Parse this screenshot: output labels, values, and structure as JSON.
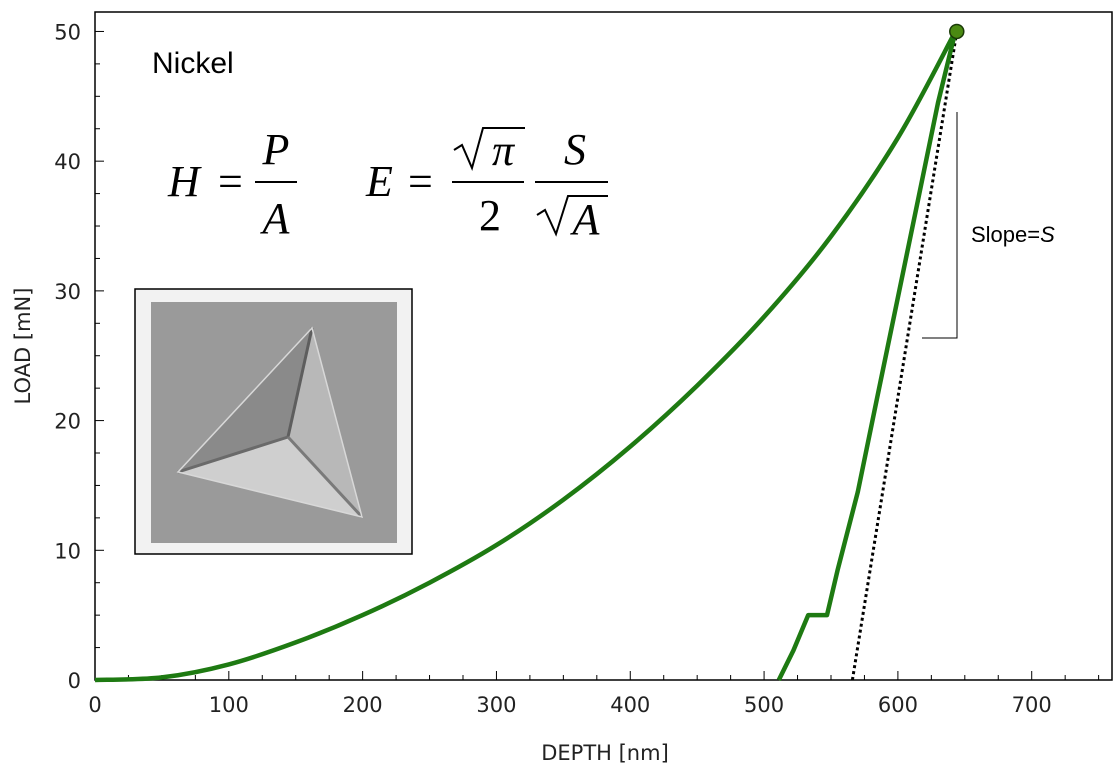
{
  "chart_data": {
    "type": "line",
    "title": "",
    "xlabel": "DEPTH [nm]",
    "ylabel": "LOAD [mN]",
    "xlim": [
      0,
      760
    ],
    "ylim": [
      0,
      51.5
    ],
    "x_ticks": [
      0,
      100,
      200,
      300,
      400,
      500,
      600,
      700
    ],
    "y_ticks": [
      0,
      10,
      20,
      30,
      40,
      50
    ],
    "grid": false,
    "annotation_material": "Nickel",
    "annotation_slope_prefix": "Slope=",
    "annotation_slope_var": "S",
    "formula_hardness": {
      "lhs": "H",
      "eq": "=",
      "num": "P",
      "den": "A"
    },
    "formula_modulus": {
      "lhs": "E",
      "eq": "=",
      "num1": "π",
      "den1": "2",
      "num2": "S",
      "den2": "A"
    },
    "series": [
      {
        "color": "#1e7a12",
        "loading": [
          [
            0,
            0
          ],
          [
            50,
            0.2
          ],
          [
            100,
            1.2
          ],
          [
            150,
            2.9
          ],
          [
            200,
            5.0
          ],
          [
            250,
            7.5
          ],
          [
            300,
            10.4
          ],
          [
            350,
            13.9
          ],
          [
            400,
            18.0
          ],
          [
            450,
            22.7
          ],
          [
            500,
            28.0
          ],
          [
            550,
            34.2
          ],
          [
            600,
            41.8
          ],
          [
            643,
            50.0
          ]
        ],
        "unloading": [
          [
            643,
            50.0
          ],
          [
            630,
            44.5
          ],
          [
            615,
            37.0
          ],
          [
            600,
            29.5
          ],
          [
            585,
            22.0
          ],
          [
            570,
            14.5
          ],
          [
            555,
            8.5
          ],
          [
            547,
            5.0
          ],
          [
            533,
            5.0
          ],
          [
            522,
            2.3
          ],
          [
            511,
            0
          ]
        ]
      }
    ],
    "max_point": [
      644,
      50.0
    ],
    "tangent": [
      [
        566,
        0
      ],
      [
        644,
        50.0
      ]
    ]
  }
}
